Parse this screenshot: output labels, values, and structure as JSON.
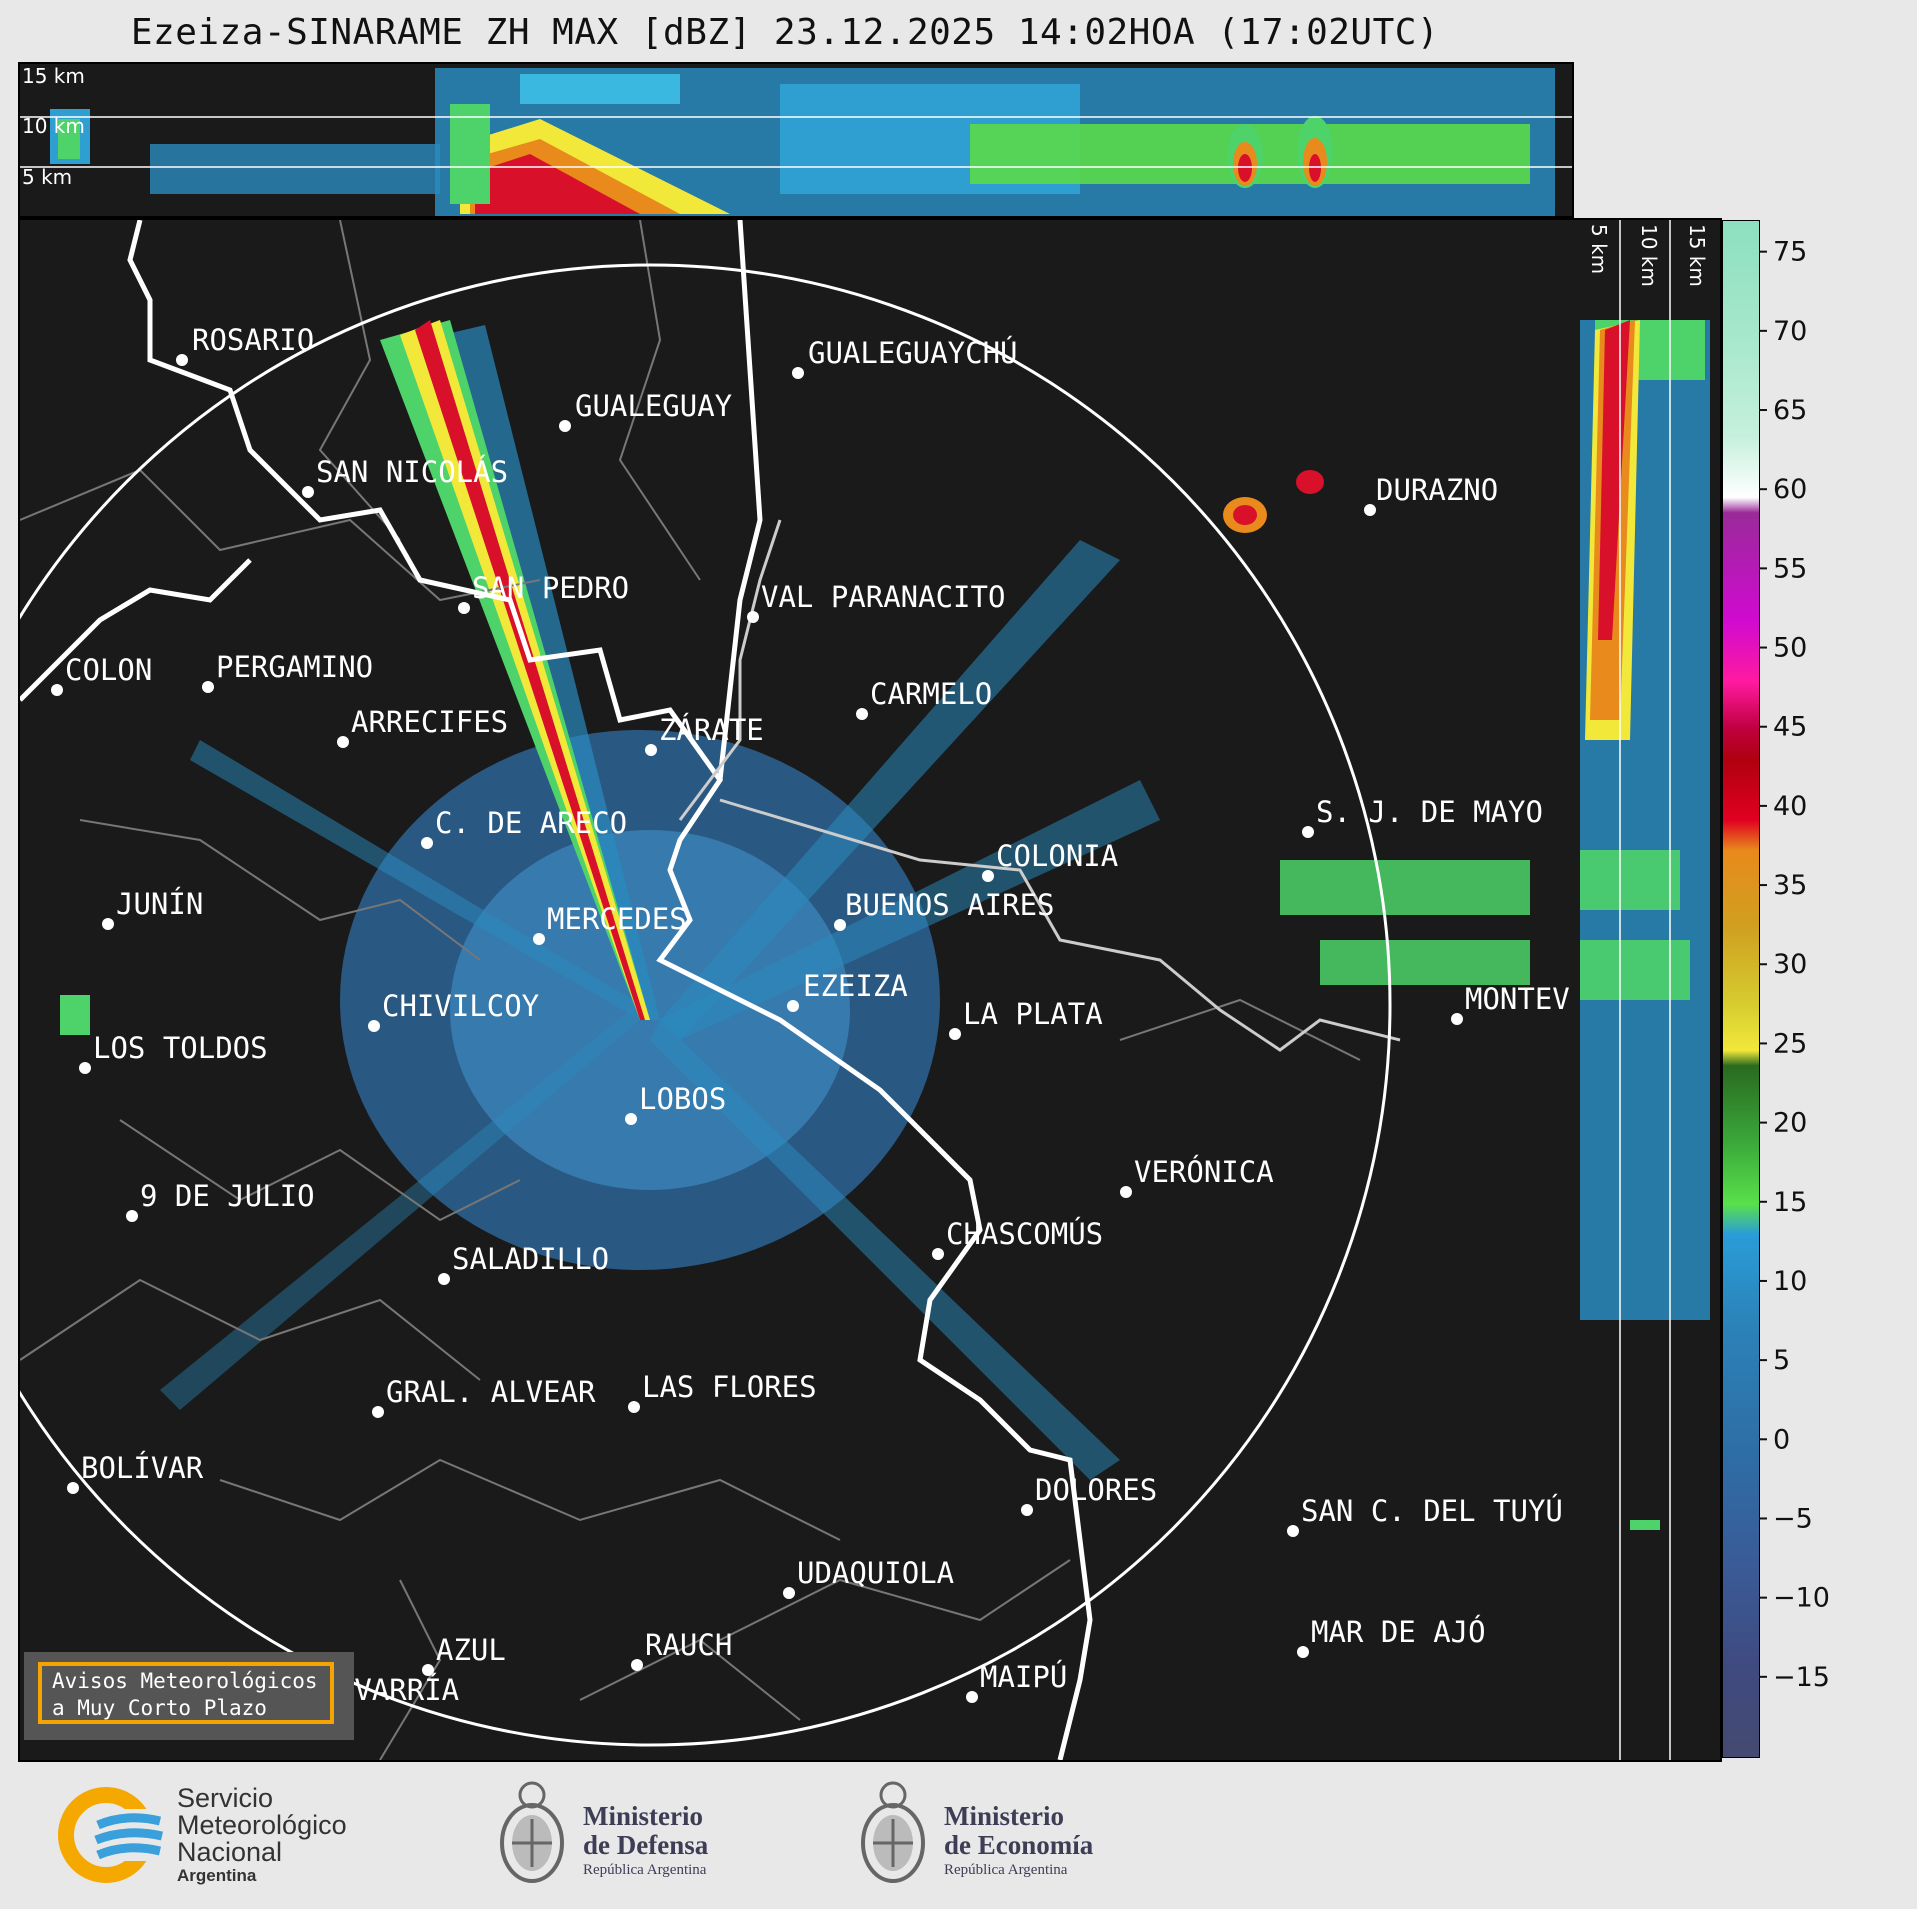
{
  "title": "Ezeiza-SINARAME ZH MAX [dBZ] 23.12.2025 14:02HOA (17:02UTC)",
  "top_profile_labels": [
    "15 km",
    "10 km",
    "5 km"
  ],
  "side_profile_labels": [
    "5 km",
    "10 km",
    "15 km"
  ],
  "colorbar": {
    "ticks": [
      "75",
      "70",
      "65",
      "60",
      "55",
      "50",
      "45",
      "40",
      "35",
      "30",
      "25",
      "20",
      "15",
      "10",
      "5",
      "0",
      "−5",
      "−10",
      "−15"
    ],
    "range": [
      -20,
      77
    ]
  },
  "cities": [
    {
      "name": "ROSARIO"
    },
    {
      "name": "GUALEGUAYCHÚ"
    },
    {
      "name": "GUALEGUAY"
    },
    {
      "name": "SAN NICOLÁS"
    },
    {
      "name": "DURAZNO"
    },
    {
      "name": "SAN PEDRO"
    },
    {
      "name": "VAL PARANACITO"
    },
    {
      "name": "COLON"
    },
    {
      "name": "PERGAMINO"
    },
    {
      "name": "CARMELO"
    },
    {
      "name": "ARRECIFES"
    },
    {
      "name": "ZÁRATE"
    },
    {
      "name": "S. J. DE MAYO"
    },
    {
      "name": "C. DE ARECO"
    },
    {
      "name": "COLONIA"
    },
    {
      "name": "JUNÍN"
    },
    {
      "name": "BUENOS AIRES"
    },
    {
      "name": "MERCEDES"
    },
    {
      "name": "EZEIZA"
    },
    {
      "name": "MONTEV"
    },
    {
      "name": "CHIVILCOY"
    },
    {
      "name": "LA PLATA"
    },
    {
      "name": "LOS TOLDOS"
    },
    {
      "name": "LOBOS"
    },
    {
      "name": "VERÓNICA"
    },
    {
      "name": "9 DE JULIO"
    },
    {
      "name": "CHASCOMÚS"
    },
    {
      "name": "SALADILLO"
    },
    {
      "name": "GRAL. ALVEAR"
    },
    {
      "name": "LAS FLORES"
    },
    {
      "name": "BOLÍVAR"
    },
    {
      "name": "DOLORES"
    },
    {
      "name": "SAN C. DEL TUYÚ"
    },
    {
      "name": "UDAQUIOLA"
    },
    {
      "name": "MAR DE AJÓ"
    },
    {
      "name": "AZUL"
    },
    {
      "name": "RAUCH"
    },
    {
      "name": "OLAVARRÍA"
    },
    {
      "name": "MAIPÚ"
    }
  ],
  "avisos": {
    "line1": "Avisos Meteorológicos",
    "line2": "a Muy Corto Plazo"
  },
  "footer": {
    "smn": [
      "Servicio",
      "Meteorológico",
      "Nacional",
      "Argentina"
    ],
    "defensa": [
      "Ministerio",
      "de Defensa",
      "República Argentina"
    ],
    "economia": [
      "Ministerio",
      "de Economía",
      "República Argentina"
    ]
  }
}
